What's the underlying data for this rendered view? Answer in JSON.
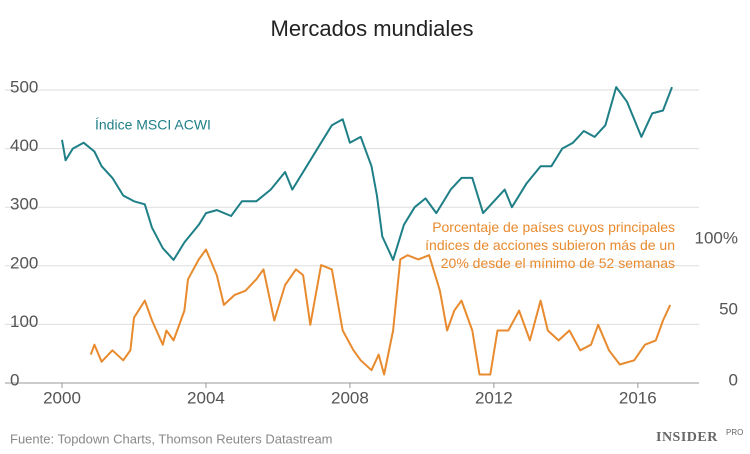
{
  "chart_data": {
    "type": "line",
    "title": "Mercados mundiales",
    "source": "Fuente: Topdown Charts, Thomson Reuters Datastream",
    "logo": "INSIDER",
    "logo_suffix": "PRO",
    "xlim": [
      2000,
      2017.7
    ],
    "xticks": [
      2000,
      2004,
      2008,
      2012,
      2016
    ],
    "ylim": [
      0,
      500
    ],
    "yticks": [
      0,
      100,
      200,
      300,
      400,
      500
    ],
    "y2lim": [
      0,
      206.3
    ],
    "y2ticks": [
      0,
      50,
      {
        "value": 100,
        "label": "100%"
      }
    ],
    "grid": true,
    "series": [
      {
        "name": "Índice MSCI ACWI",
        "color": "#1f7f87",
        "x": [
          2000.0,
          2000.1,
          2000.3,
          2000.6,
          2000.9,
          2001.1,
          2001.4,
          2001.7,
          2002.0,
          2002.3,
          2002.5,
          2002.8,
          2003.1,
          2003.4,
          2003.8,
          2004.0,
          2004.3,
          2004.7,
          2005.0,
          2005.4,
          2005.8,
          2006.2,
          2006.4,
          2006.8,
          2007.2,
          2007.5,
          2007.8,
          2008.0,
          2008.3,
          2008.6,
          2008.75,
          2008.9,
          2009.2,
          2009.5,
          2009.8,
          2010.1,
          2010.4,
          2010.8,
          2011.1,
          2011.4,
          2011.7,
          2012.0,
          2012.3,
          2012.5,
          2012.9,
          2013.3,
          2013.6,
          2013.9,
          2014.2,
          2014.5,
          2014.8,
          2015.1,
          2015.4,
          2015.7,
          2015.9,
          2016.1,
          2016.4,
          2016.7,
          2016.95
        ],
        "values": [
          415,
          380,
          400,
          410,
          395,
          370,
          350,
          320,
          310,
          305,
          265,
          230,
          210,
          240,
          270,
          290,
          295,
          285,
          310,
          310,
          330,
          360,
          330,
          370,
          410,
          440,
          450,
          410,
          420,
          370,
          320,
          250,
          210,
          270,
          300,
          315,
          290,
          330,
          350,
          350,
          290,
          310,
          330,
          300,
          340,
          370,
          370,
          400,
          410,
          430,
          420,
          440,
          505,
          480,
          450,
          420,
          460,
          465,
          505
        ]
      },
      {
        "name": "Porcentaje de países cuyos principales índices de acciones subieron más de un 20% desde el mínimo de 52 semanas",
        "color": "#e88a2e",
        "axis": "y2",
        "x": [
          2000.8,
          2000.9,
          2001.1,
          2001.4,
          2001.7,
          2001.9,
          2002.0,
          2002.3,
          2002.5,
          2002.8,
          2002.9,
          2003.1,
          2003.4,
          2003.5,
          2003.8,
          2004.0,
          2004.3,
          2004.5,
          2004.8,
          2005.1,
          2005.4,
          2005.6,
          2005.9,
          2006.2,
          2006.5,
          2006.7,
          2006.9,
          2007.2,
          2007.5,
          2007.8,
          2008.1,
          2008.3,
          2008.6,
          2008.8,
          2008.95,
          2009.2,
          2009.4,
          2009.6,
          2009.9,
          2010.2,
          2010.5,
          2010.7,
          2010.9,
          2011.1,
          2011.4,
          2011.6,
          2011.9,
          2012.1,
          2012.4,
          2012.7,
          2013.0,
          2013.3,
          2013.5,
          2013.8,
          2014.1,
          2014.4,
          2014.7,
          2014.9,
          2015.2,
          2015.5,
          2015.9,
          2016.2,
          2016.5,
          2016.7,
          2016.9
        ],
        "values": [
          20,
          27,
          15,
          23,
          16,
          23,
          46,
          58,
          44,
          27,
          37,
          30,
          51,
          73,
          87,
          94,
          76,
          55,
          62,
          65,
          73,
          80,
          44,
          69,
          80,
          76,
          41,
          83,
          80,
          37,
          23,
          16,
          9,
          20,
          6,
          37,
          87,
          90,
          87,
          90,
          65,
          37,
          51,
          58,
          37,
          6,
          6,
          37,
          37,
          51,
          30,
          58,
          37,
          30,
          37,
          23,
          27,
          41,
          23,
          13,
          16,
          27,
          30,
          44,
          55
        ]
      }
    ]
  }
}
